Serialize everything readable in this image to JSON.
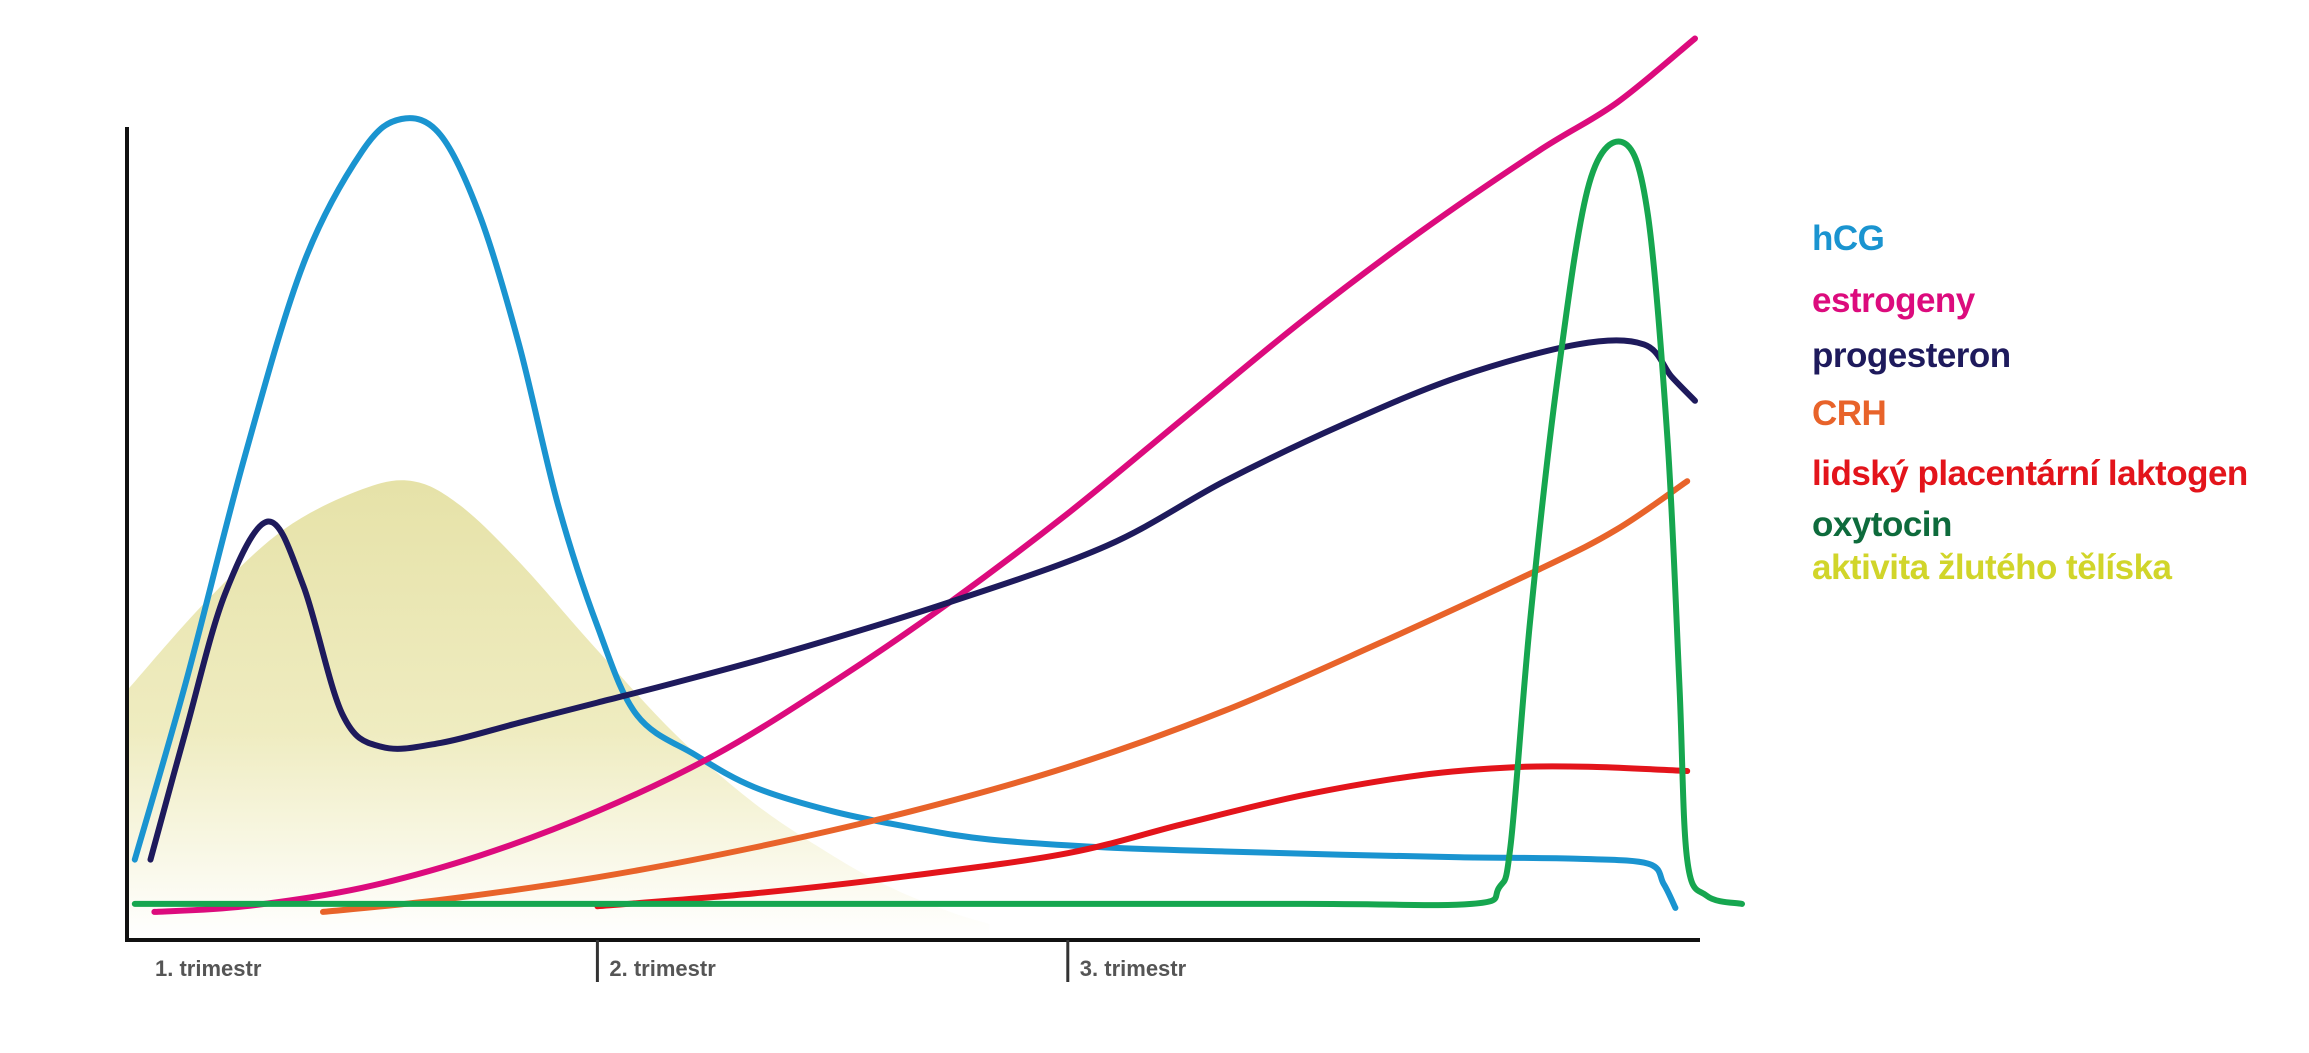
{
  "chart_data": {
    "type": "line",
    "title": "",
    "xlabel": "",
    "ylabel": "",
    "x_range": [
      0,
      40
    ],
    "y_range": [
      0,
      100
    ],
    "grid": false,
    "legend_position": "right",
    "x_ticks": [
      {
        "value": 0,
        "label": "1. trimestr"
      },
      {
        "value": 12,
        "label": "2. trimestr"
      },
      {
        "value": 24,
        "label": "3. trimestr"
      }
    ],
    "series": [
      {
        "name": "hCG",
        "color": "#1a94d0",
        "width": 6,
        "type": "line",
        "points": [
          [
            0.2,
            8
          ],
          [
            1.5,
            30
          ],
          [
            3,
            58
          ],
          [
            4.5,
            82
          ],
          [
            6,
            96
          ],
          [
            7,
            100
          ],
          [
            8,
            98
          ],
          [
            9,
            88
          ],
          [
            10,
            72
          ],
          [
            11,
            52
          ],
          [
            12,
            37
          ],
          [
            13,
            26
          ],
          [
            14.5,
            21
          ],
          [
            16,
            17
          ],
          [
            18,
            14
          ],
          [
            20,
            12
          ],
          [
            22,
            10.5
          ],
          [
            25,
            9.5
          ],
          [
            28,
            9
          ],
          [
            31,
            8.6
          ],
          [
            34,
            8.3
          ],
          [
            37,
            8.1
          ],
          [
            38.8,
            7.5
          ],
          [
            39.2,
            5
          ],
          [
            39.5,
            2
          ]
        ]
      },
      {
        "name": "estrogeny",
        "color": "#dc0b7d",
        "width": 6,
        "type": "line",
        "points": [
          [
            0.7,
            1.5
          ],
          [
            3,
            2.2
          ],
          [
            6,
            4.5
          ],
          [
            9,
            8.5
          ],
          [
            12,
            14
          ],
          [
            15,
            21
          ],
          [
            18,
            30
          ],
          [
            21,
            40
          ],
          [
            24,
            51
          ],
          [
            27,
            63
          ],
          [
            30,
            75
          ],
          [
            33,
            86
          ],
          [
            36,
            96
          ],
          [
            38,
            102
          ],
          [
            40,
            110
          ]
        ]
      },
      {
        "name": "progesteron",
        "color": "#1e1a5c",
        "width": 6,
        "type": "line",
        "points": [
          [
            0.6,
            8
          ],
          [
            1.5,
            24
          ],
          [
            2.5,
            41
          ],
          [
            3.6,
            50
          ],
          [
            4.5,
            42
          ],
          [
            5.5,
            26
          ],
          [
            6.5,
            22
          ],
          [
            8,
            22.5
          ],
          [
            10,
            25
          ],
          [
            12,
            27.5
          ],
          [
            14,
            30
          ],
          [
            17,
            34
          ],
          [
            21,
            40
          ],
          [
            25,
            47
          ],
          [
            28,
            55
          ],
          [
            31,
            62
          ],
          [
            34,
            68
          ],
          [
            37,
            72
          ],
          [
            38.7,
            72
          ],
          [
            39.4,
            68
          ],
          [
            40,
            65
          ]
        ]
      },
      {
        "name": "CRH",
        "color": "#e8632a",
        "width": 6,
        "type": "line",
        "points": [
          [
            5,
            1.5
          ],
          [
            8,
            3
          ],
          [
            12,
            5.8
          ],
          [
            16,
            9.5
          ],
          [
            20,
            14
          ],
          [
            24,
            19.5
          ],
          [
            28,
            26.5
          ],
          [
            32,
            35
          ],
          [
            36,
            44
          ],
          [
            38,
            49
          ],
          [
            39.8,
            55
          ]
        ]
      },
      {
        "name": "lidský placentární laktogen",
        "color": "#e3141b",
        "width": 6,
        "type": "line",
        "points": [
          [
            12,
            2.2
          ],
          [
            16,
            3.8
          ],
          [
            20,
            6
          ],
          [
            24,
            8.8
          ],
          [
            27,
            12.5
          ],
          [
            30,
            16
          ],
          [
            33,
            18.5
          ],
          [
            35.5,
            19.5
          ],
          [
            37.5,
            19.5
          ],
          [
            39.8,
            19
          ]
        ]
      },
      {
        "name": "oxytocin",
        "color": "#0e6b3c",
        "stroke_color": "#16a64f",
        "width": 6,
        "type": "line",
        "points": [
          [
            0.2,
            2.5
          ],
          [
            10,
            2.5
          ],
          [
            20,
            2.5
          ],
          [
            30,
            2.5
          ],
          [
            34.3,
            2.5
          ],
          [
            35,
            4.5
          ],
          [
            35.3,
            10
          ],
          [
            35.8,
            38
          ],
          [
            36.5,
            68
          ],
          [
            37.3,
            92
          ],
          [
            38.2,
            97
          ],
          [
            38.8,
            88
          ],
          [
            39.3,
            60
          ],
          [
            39.6,
            30
          ],
          [
            39.8,
            8
          ],
          [
            40.3,
            3.5
          ],
          [
            41.2,
            2.5
          ]
        ]
      },
      {
        "name": "aktivita žlutého tělíska",
        "color": "#d1d52a",
        "fill": "#ece9b2",
        "type": "area",
        "points": [
          [
            0,
            29
          ],
          [
            2,
            40
          ],
          [
            4,
            49
          ],
          [
            6,
            54
          ],
          [
            7.3,
            55
          ],
          [
            8.5,
            52
          ],
          [
            10,
            45
          ],
          [
            12,
            34
          ],
          [
            14,
            23.5
          ],
          [
            16,
            15
          ],
          [
            18,
            8.5
          ],
          [
            19.5,
            4.5
          ],
          [
            21,
            1.5
          ],
          [
            22,
            0
          ]
        ]
      }
    ]
  }
}
